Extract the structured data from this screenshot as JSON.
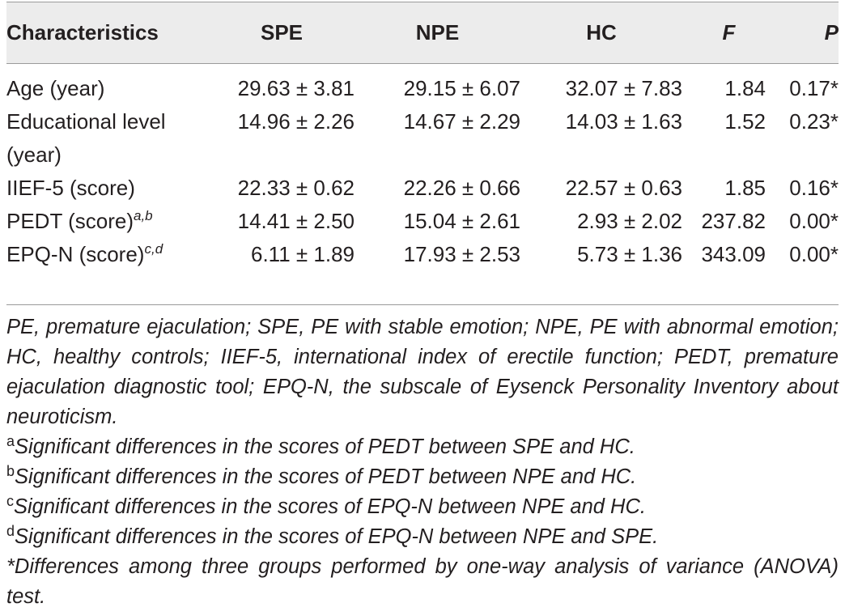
{
  "table": {
    "headers": [
      "Characteristics",
      "SPE",
      "NPE",
      "HC",
      "F",
      "P"
    ],
    "rows": [
      {
        "label": "Age (year)",
        "sup": "",
        "spe": "29.63 ± 3.81",
        "npe": "29.15 ± 6.07",
        "hc": "32.07 ± 7.83",
        "f": "1.84",
        "p": "0.17*"
      },
      {
        "label": "Educational level (year)",
        "sup": "",
        "spe": "14.96 ± 2.26",
        "npe": "14.67 ± 2.29",
        "hc": "14.03 ± 1.63",
        "f": "1.52",
        "p": "0.23*"
      },
      {
        "label": "IIEF-5 (score)",
        "sup": "",
        "spe": "22.33 ± 0.62",
        "npe": "22.26 ± 0.66",
        "hc": "22.57 ± 0.63",
        "f": "1.85",
        "p": "0.16*"
      },
      {
        "label": "PEDT (score)",
        "sup": "a,b",
        "spe": "14.41 ± 2.50",
        "npe": "15.04 ± 2.61",
        "hc": "2.93 ± 2.02",
        "f": "237.82",
        "p": "0.00*"
      },
      {
        "label": "EPQ-N (score)",
        "sup": "c,d",
        "spe": "6.11 ± 1.89",
        "npe": "17.93 ± 2.53",
        "hc": "5.73 ± 1.36",
        "f": "343.09",
        "p": "0.00*"
      }
    ]
  },
  "footnotes": {
    "abbreviations": "PE, premature ejaculation; SPE, PE with stable emotion; NPE, PE with abnormal emotion; HC, healthy controls; IIEF-5, international index of erectile function; PEDT, premature ejaculation diagnostic tool; EPQ-N, the subscale of Eysenck Personality Inventory about neuroticism.",
    "notes": [
      {
        "mark": "a",
        "text": "Significant differences in the scores of PEDT between SPE and HC."
      },
      {
        "mark": "b",
        "text": "Significant differences in the scores of PEDT between NPE and HC."
      },
      {
        "mark": "c",
        "text": "Significant differences in the scores of EPQ-N between NPE and HC."
      },
      {
        "mark": "d",
        "text": "Significant differences in the scores of EPQ-N between NPE and SPE."
      }
    ],
    "asterisk": "*Differences among three groups performed by one-way analysis of variance (ANOVA) test."
  }
}
